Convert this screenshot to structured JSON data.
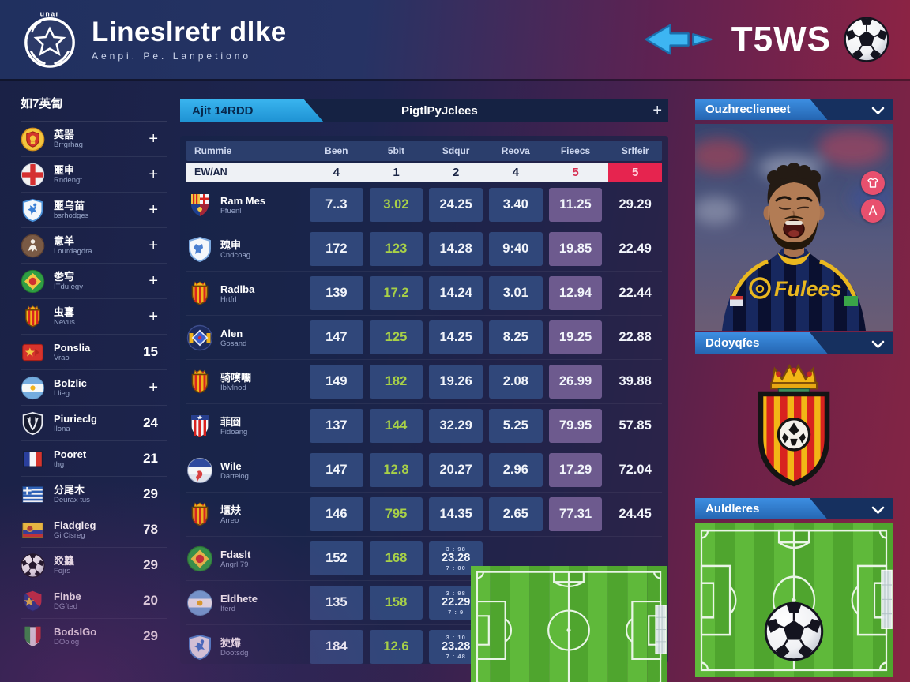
{
  "colors": {
    "accent_cyan": "#2ea9e6",
    "accent_red": "#e6244f",
    "cell_blue": "#30477a",
    "cell_purple": "#6d5a8e",
    "green_value": "#a8d147",
    "pitch_green": "#55ad33",
    "panel_blue": "#2e7bd0",
    "header_maroon": "#872544"
  },
  "header": {
    "logo_text": "unar",
    "title": "Lineslretr dlke",
    "subtitle": "Aenpi. Pe. Lanpetiono",
    "brand": "T5WS"
  },
  "sidebar": {
    "title": "如7英匐",
    "items": [
      {
        "icon": "crest-gold-red",
        "name": "英噐",
        "sub": "Brrgrhag",
        "badge": "+"
      },
      {
        "icon": "flag-england",
        "name": "噩申",
        "sub": "Rndengt",
        "badge": "+"
      },
      {
        "icon": "shield-blue-figure",
        "name": "噩乌苗",
        "sub": "bsrhodges",
        "badge": "+"
      },
      {
        "icon": "circle-brown",
        "name": "意羊",
        "sub": "Lourdagdra",
        "badge": "+"
      },
      {
        "icon": "flag-brazil",
        "name": "㐘㝍",
        "sub": "ITdu egy",
        "badge": "+"
      },
      {
        "icon": "crest-spain",
        "name": "虫㐯",
        "sub": "Nevus",
        "badge": "+"
      },
      {
        "icon": "flag-red-star",
        "name": "Ponslia",
        "sub": "Vrao",
        "badge": "15"
      },
      {
        "icon": "flag-argentina",
        "name": "Bolzlic",
        "sub": "Llieg",
        "badge": "+"
      },
      {
        "icon": "shield-black-white",
        "name": "Piurieclg",
        "sub": "Ilona",
        "badge": "24"
      },
      {
        "icon": "flag-france",
        "name": "Pooret",
        "sub": "thg",
        "badge": "21"
      },
      {
        "icon": "flag-greece",
        "name": "分尾木",
        "sub": "Deurax tus",
        "badge": "29"
      },
      {
        "icon": "flag-colombia",
        "name": "Fiadgleg",
        "sub": "Gi Cisreg",
        "badge": "78"
      },
      {
        "icon": "soccer-ball",
        "name": "㸚䲜",
        "sub": "Fojrs",
        "badge": "29"
      },
      {
        "icon": "crest-red-blue-star",
        "name": "Finbe",
        "sub": "DGfted",
        "badge": "20"
      },
      {
        "icon": "flag-italy-shield",
        "name": "BodslGo",
        "sub": "DOolog",
        "badge": "29"
      }
    ]
  },
  "main": {
    "tabs": {
      "active": "Ajit 14RDD",
      "secondary": "PigtlPyJclees",
      "add": "+"
    },
    "table": {
      "columns": [
        "Rummie",
        "Been",
        "5bIt",
        "Sdqur",
        "Reova",
        "Fieecs",
        "Srlfeir"
      ],
      "summary": {
        "label": "EW/AN",
        "values": [
          "4",
          "1",
          "2",
          "4",
          "5",
          "5"
        ]
      },
      "rows": [
        {
          "icon": "crest-barca",
          "name": "Ram Mes",
          "sub": "Ffuenl",
          "values": [
            "7..3",
            "3.02",
            "24.25",
            "3.40",
            "11.25",
            "29.29"
          ]
        },
        {
          "icon": "shield-white-blue",
          "name": "瑰申",
          "sub": "Cndcoag",
          "values": [
            "172",
            "123",
            "14.28",
            "9:40",
            "19.85",
            "22.49"
          ]
        },
        {
          "icon": "crest-spain",
          "name": "Radlba",
          "sub": "Hrtfrl",
          "values": [
            "139",
            "17.2",
            "14.24",
            "3.01",
            "12.94",
            "22.44"
          ]
        },
        {
          "icon": "circle-blue-diamond",
          "name": "Alen",
          "sub": "Gosand",
          "values": [
            "147",
            "125",
            "14.25",
            "8.25",
            "19.25",
            "22.88"
          ]
        },
        {
          "icon": "crest-spain",
          "name": "骑㗷㘚",
          "sub": "Iblvlnod",
          "values": [
            "149",
            "182",
            "19.26",
            "2.08",
            "26.99",
            "39.88"
          ]
        },
        {
          "icon": "crest-atletico",
          "name": "菲囼",
          "sub": "Fidoang",
          "values": [
            "137",
            "144",
            "32.29",
            "5.25",
            "79.95",
            "57.85"
          ]
        },
        {
          "icon": "circle-tricolor",
          "name": "Wile",
          "sub": "Dartelog",
          "values": [
            "147",
            "12.8",
            "20.27",
            "2.96",
            "17.29",
            "72.04"
          ]
        },
        {
          "icon": "crest-spain",
          "name": "㙺㚘",
          "sub": "Arreo",
          "values": [
            "146",
            "795",
            "14.35",
            "2.65",
            "77.31",
            "24.45"
          ]
        },
        {
          "icon": "flag-brazil",
          "name": "Fdaslt",
          "sub": "Angrl 79",
          "values": [
            "152",
            "168",
            "23.28"
          ],
          "mini_top": "3 : 98",
          "mini_bottom": "7 : 00"
        },
        {
          "icon": "flag-argentina",
          "name": "Eldhete",
          "sub": "Iferd",
          "values": [
            "135",
            "158",
            "22.29"
          ],
          "mini_top": "3 : 98",
          "mini_bottom": "7 : 9"
        },
        {
          "icon": "shield-blue-figure",
          "name": "㹬㸆",
          "sub": "Dootsdg",
          "values": [
            "184",
            "12.6",
            "23.28"
          ],
          "mini_top": "3 : 10",
          "mini_bottom": "7 : 48"
        }
      ]
    }
  },
  "right": {
    "panels": [
      {
        "title": "Ouzhreclieneet"
      },
      {
        "title": "Ddoyqfes"
      },
      {
        "title": "Auldleres"
      }
    ],
    "jersey": {
      "badge": "O",
      "text": "Fulees"
    }
  }
}
